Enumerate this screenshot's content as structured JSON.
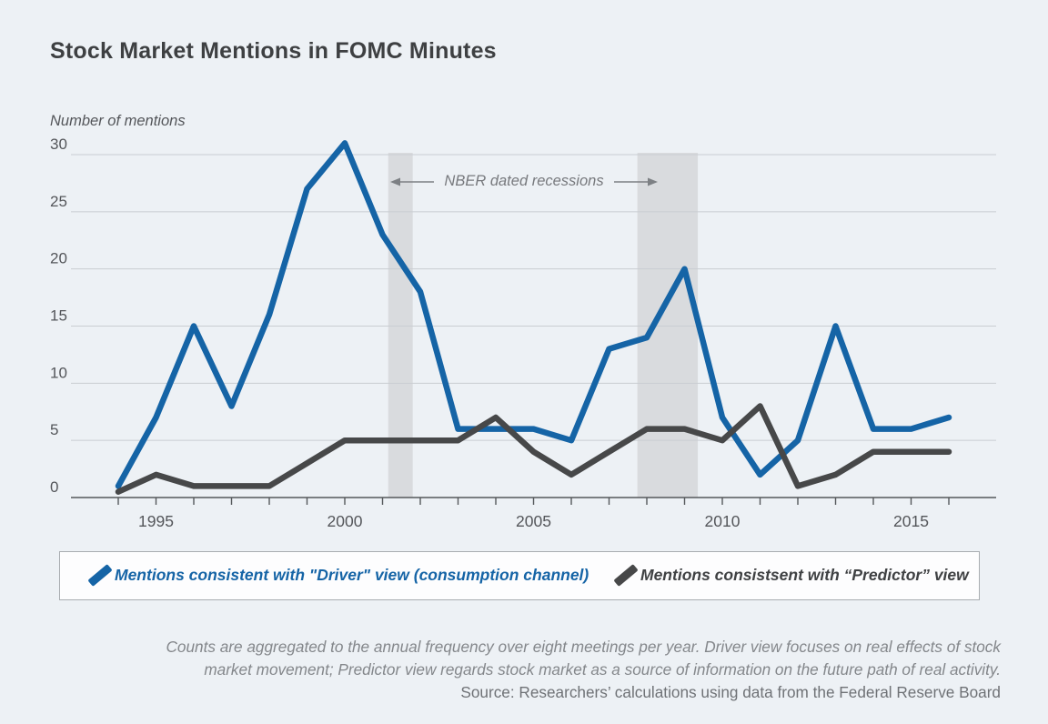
{
  "title": "Stock Market Mentions in FOMC Minutes",
  "y_axis_title": "Number of mentions",
  "annotation": "NBER dated recessions",
  "legend": {
    "driver": "Mentions consistent with \"Driver\" view (consumption channel)",
    "predictor": "Mentions consistsent with “Predictor” view"
  },
  "footnote": {
    "line1": "Counts are aggregated to the annual frequency over eight meetings per year. Driver view focuses on real effects of stock",
    "line2": "market movement; Predictor view regards stock market as a source of information on the future path of real activity.",
    "line3": "Source: Researchers’ calculations using data from the Federal Reserve Board"
  },
  "colors": {
    "background": "#edf1f5",
    "driver_line": "#1564a6",
    "predictor_line": "#474849",
    "gridline": "#c9cdd2",
    "axis": "#55585b",
    "recession_band": "#d9dbde",
    "tick_text": "#54565a",
    "annotation_text": "#77797d",
    "arrow": "#7d8084"
  },
  "chart_data": {
    "type": "line",
    "title": "Stock Market Mentions in FOMC Minutes",
    "xlabel": "",
    "ylabel": "Number of mentions",
    "x": [
      1994,
      1995,
      1996,
      1997,
      1998,
      1999,
      2000,
      2001,
      2002,
      2003,
      2004,
      2005,
      2006,
      2007,
      2008,
      2009,
      2010,
      2011,
      2012,
      2013,
      2014,
      2015,
      2016
    ],
    "y_ticks": [
      0,
      5,
      10,
      15,
      20,
      25,
      30
    ],
    "ylim": [
      0,
      31.5
    ],
    "x_tick_label_years": [
      1995,
      2000,
      2005,
      2010,
      2015
    ],
    "grid": "horizontal",
    "legend_position": "bottom-box",
    "series": [
      {
        "name": "Mentions consistent with \"Driver\" view (consumption channel)",
        "color": "#1564a6",
        "values": [
          1,
          7,
          15,
          8,
          16,
          27,
          31,
          23,
          18,
          6,
          6,
          6,
          5,
          13,
          14,
          20,
          7,
          2,
          5,
          15,
          6,
          6,
          7
        ]
      },
      {
        "name": "Mentions consistsent with “Predictor” view",
        "color": "#474849",
        "values": [
          0.5,
          2,
          1,
          1,
          1,
          3,
          5,
          5,
          5,
          5,
          7,
          4,
          2,
          4,
          6,
          6,
          5,
          8,
          1,
          2,
          4,
          4,
          4
        ]
      }
    ],
    "recession_bands": [
      {
        "label": "NBER dated recessions",
        "start": 2001.15,
        "end": 2001.8
      },
      {
        "label": "NBER dated recessions",
        "start": 2007.75,
        "end": 2009.35
      }
    ]
  }
}
